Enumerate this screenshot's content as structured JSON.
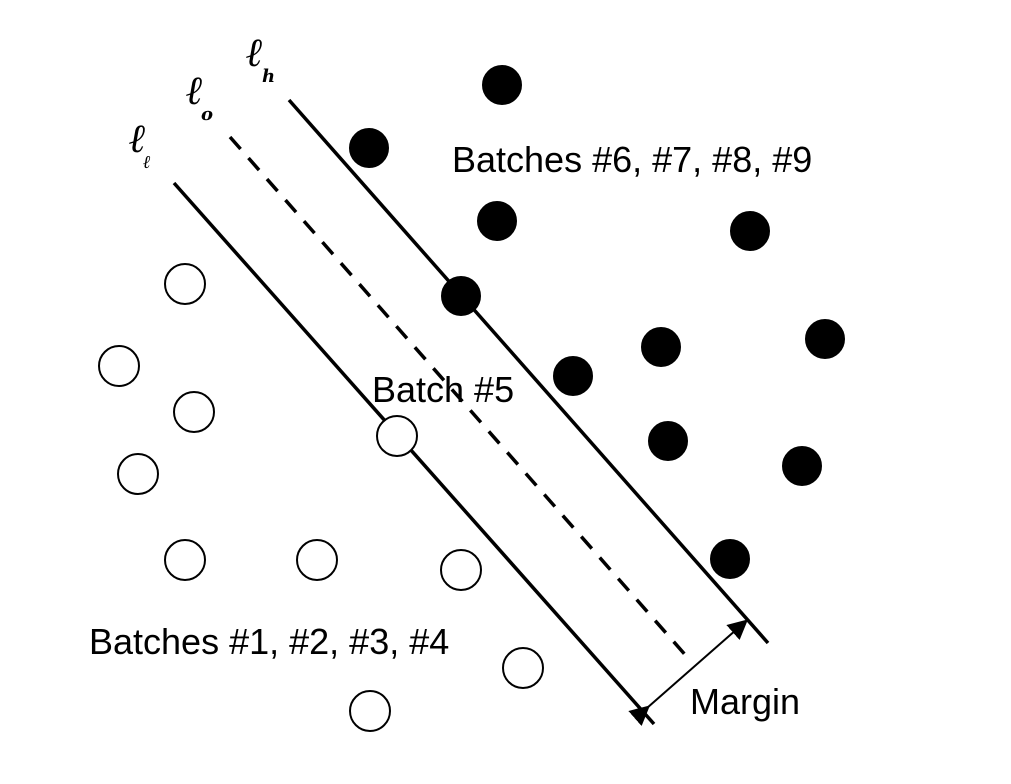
{
  "labels": {
    "upper_group": "Batches #6, #7, #8, #9",
    "middle_group": "Batch #5",
    "lower_group": "Batches #1, #2, #3, #4",
    "margin": "Margin"
  },
  "line_labels": {
    "l_high": {
      "main": "ℓ",
      "sub": "h"
    },
    "l_zero": {
      "main": "ℓ",
      "sub": "o"
    },
    "l_low": {
      "main": "ℓ",
      "sub": "ℓ"
    }
  },
  "colors": {
    "line": "#000000",
    "filled_point": "#000000",
    "open_point_fill": "#ffffff",
    "background": "#ffffff"
  }
}
